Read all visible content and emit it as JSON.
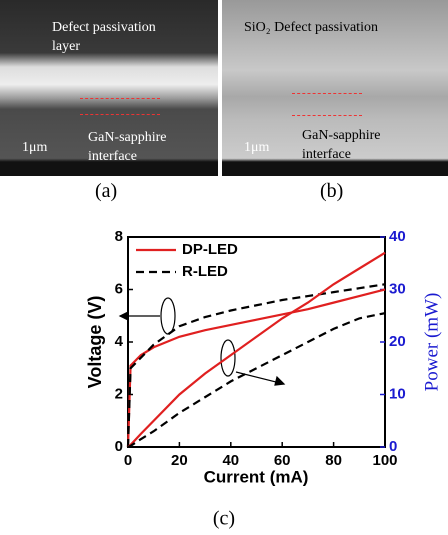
{
  "panels": [
    {
      "label": "(a)",
      "annotations": [
        "Defect passivation",
        "layer",
        "GaN-sapphire",
        "interface"
      ],
      "scale": "1μm"
    },
    {
      "label": "(b)",
      "annotations": [
        "SiO₂ Defect passivation",
        "GaN-sapphire",
        "interface"
      ],
      "scale": "1μm"
    }
  ],
  "chart_data": {
    "type": "line",
    "label": "(c)",
    "x_label": "Current (mA)",
    "y_label": "Voltage (V)",
    "y2_label": "Power (mW)",
    "x": [
      0,
      1,
      5,
      10,
      20,
      30,
      40,
      50,
      60,
      70,
      80,
      90,
      100
    ],
    "xlim": [
      0,
      100
    ],
    "xticks": [
      0,
      20,
      40,
      60,
      80,
      100
    ],
    "ylim": [
      0,
      8
    ],
    "yticks": [
      0,
      2,
      4,
      6,
      8
    ],
    "y2lim": [
      0,
      40
    ],
    "y2ticks": [
      0,
      10,
      20,
      30,
      40
    ],
    "y2_color": "#1a1ad0",
    "series": [
      {
        "name": "DP-LED",
        "color": "#e02020",
        "dash": false,
        "values": [
          0,
          3.1,
          3.5,
          3.8,
          4.2,
          4.45,
          4.65,
          4.85,
          5.05,
          5.25,
          5.5,
          5.75,
          6.0
        ]
      },
      {
        "name": "R-LED",
        "color": "#000000",
        "dash": true,
        "values": [
          0,
          3.0,
          3.4,
          3.9,
          4.6,
          4.95,
          5.2,
          5.4,
          5.6,
          5.75,
          5.9,
          6.05,
          6.2
        ]
      },
      {
        "color": "#e02020",
        "dash": false,
        "axis": "y2",
        "values": [
          0,
          0.4,
          2.5,
          5,
          10,
          14,
          17.5,
          21,
          24.5,
          27.5,
          31,
          34,
          37
        ]
      },
      {
        "color": "#000000",
        "dash": true,
        "axis": "y2",
        "values": [
          0,
          0.2,
          1.5,
          3,
          6.5,
          9.5,
          12.5,
          15,
          17.5,
          20,
          22.5,
          24.5,
          25.5
        ]
      }
    ]
  }
}
